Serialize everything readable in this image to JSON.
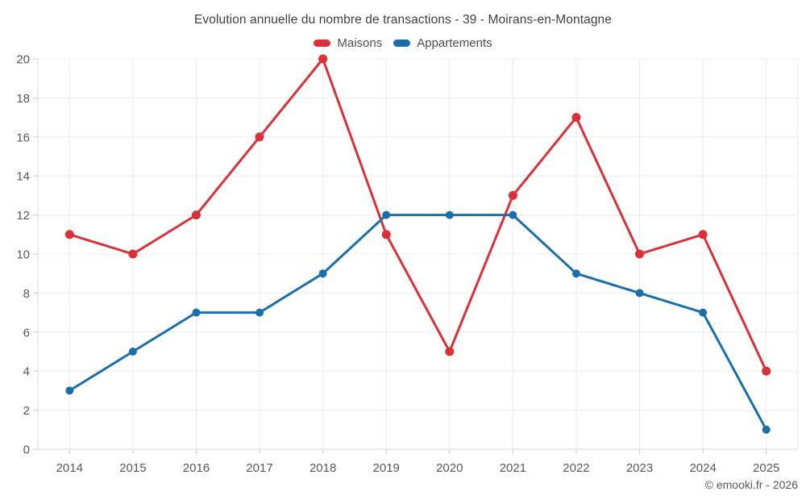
{
  "chart_data": {
    "type": "line",
    "title": "Evolution annuelle du nombre de transactions - 39 - Moirans-en-Montagne",
    "categories": [
      "2014",
      "2015",
      "2016",
      "2017",
      "2018",
      "2019",
      "2020",
      "2021",
      "2022",
      "2023",
      "2024",
      "2025"
    ],
    "series": [
      {
        "name": "Maisons",
        "color": "#da3138",
        "marker_radius": 5.5,
        "values": [
          11,
          10,
          12,
          16,
          20,
          11,
          5,
          13,
          17,
          10,
          11,
          4
        ]
      },
      {
        "name": "Appartements",
        "color": "#1a6fa8",
        "marker_radius": 5,
        "values": [
          3,
          5,
          7,
          7,
          9,
          12,
          12,
          12,
          9,
          8,
          7,
          1
        ]
      }
    ],
    "xlabel": "",
    "ylabel": "",
    "ylim": [
      0,
      20
    ],
    "ytick_step": 2,
    "grid": true,
    "legend_position": "top"
  },
  "footer": {
    "copyright": "© emooki.fr - 2026"
  }
}
